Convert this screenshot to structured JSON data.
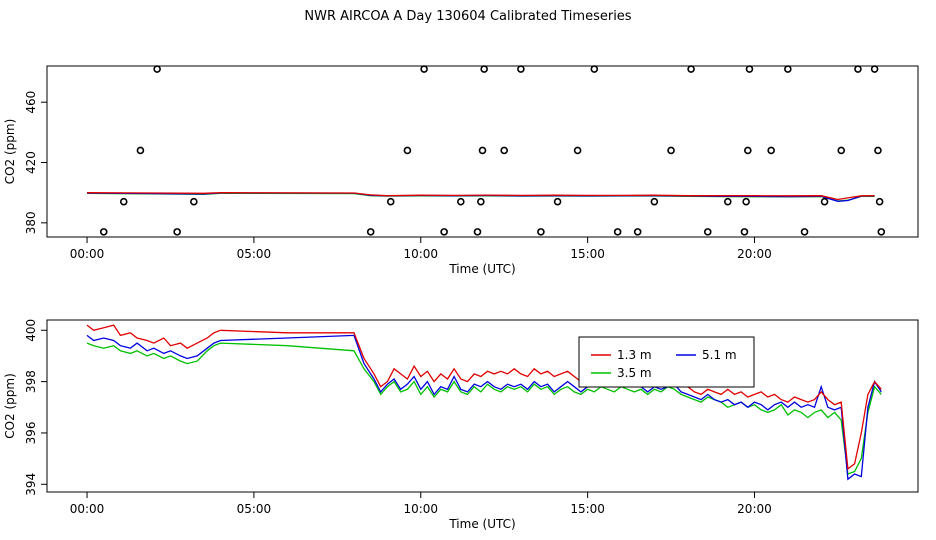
{
  "figure_title": "NWR AIRCOA A  Day 130604  Calibrated Timeseries",
  "colors": {
    "s13": "#e00000",
    "s35": "#00c000",
    "s51": "#0000e0",
    "axis": "#000000"
  },
  "chart_data": [
    {
      "type": "scatter",
      "title": "",
      "xlabel": "Time (UTC)",
      "ylabel": "CO2 (ppm)",
      "xlim": [
        -1.2,
        24.9
      ],
      "ylim": [
        370.6,
        484.0
      ],
      "xticks": [
        0,
        5,
        10,
        15,
        20
      ],
      "xtick_labels": [
        "00:00",
        "05:00",
        "10:00",
        "15:00",
        "20:00"
      ],
      "yticks": [
        380,
        420,
        460
      ],
      "ytick_labels": [
        "380",
        "420",
        "460"
      ],
      "points": [
        {
          "x": 0.5,
          "y": 374
        },
        {
          "x": 1.1,
          "y": 394
        },
        {
          "x": 1.6,
          "y": 428
        },
        {
          "x": 2.1,
          "y": 482
        },
        {
          "x": 2.7,
          "y": 374
        },
        {
          "x": 3.2,
          "y": 394
        },
        {
          "x": 8.5,
          "y": 374
        },
        {
          "x": 9.1,
          "y": 394
        },
        {
          "x": 9.6,
          "y": 428
        },
        {
          "x": 10.1,
          "y": 482
        },
        {
          "x": 10.7,
          "y": 374
        },
        {
          "x": 11.2,
          "y": 394
        },
        {
          "x": 11.7,
          "y": 374
        },
        {
          "x": 11.8,
          "y": 394
        },
        {
          "x": 11.85,
          "y": 428
        },
        {
          "x": 11.9,
          "y": 482
        },
        {
          "x": 12.5,
          "y": 428
        },
        {
          "x": 13.0,
          "y": 482
        },
        {
          "x": 13.6,
          "y": 374
        },
        {
          "x": 14.1,
          "y": 394
        },
        {
          "x": 14.7,
          "y": 428
        },
        {
          "x": 15.2,
          "y": 482
        },
        {
          "x": 15.9,
          "y": 374
        },
        {
          "x": 16.5,
          "y": 374
        },
        {
          "x": 17.0,
          "y": 394
        },
        {
          "x": 17.5,
          "y": 428
        },
        {
          "x": 18.1,
          "y": 482
        },
        {
          "x": 18.6,
          "y": 374
        },
        {
          "x": 19.2,
          "y": 394
        },
        {
          "x": 19.7,
          "y": 374
        },
        {
          "x": 19.75,
          "y": 394
        },
        {
          "x": 19.8,
          "y": 428
        },
        {
          "x": 19.85,
          "y": 482
        },
        {
          "x": 20.5,
          "y": 428
        },
        {
          "x": 21.0,
          "y": 482
        },
        {
          "x": 21.5,
          "y": 374
        },
        {
          "x": 22.1,
          "y": 394
        },
        {
          "x": 22.6,
          "y": 428
        },
        {
          "x": 23.1,
          "y": 482
        },
        {
          "x": 23.6,
          "y": 482
        },
        {
          "x": 23.7,
          "y": 428
        },
        {
          "x": 23.75,
          "y": 394
        },
        {
          "x": 23.8,
          "y": 374
        }
      ],
      "series": [
        {
          "name": "1.3 m",
          "color": "#e00000",
          "x": [
            0.0,
            2.0,
            3.5,
            4.0,
            8.0,
            8.5,
            9.0,
            10.0,
            11.0,
            12.0,
            13.0,
            14.0,
            15.0,
            16.0,
            17.0,
            18.0,
            19.0,
            20.0,
            21.0,
            22.0,
            22.5,
            22.8,
            23.2,
            23.6
          ],
          "values": [
            400.0,
            399.8,
            399.6,
            400.0,
            399.8,
            398.5,
            398.0,
            398.3,
            398.2,
            398.4,
            398.2,
            398.3,
            398.2,
            398.2,
            398.3,
            398.0,
            398.0,
            398.0,
            397.9,
            398.0,
            395.5,
            396.5,
            397.9,
            398.0
          ]
        },
        {
          "name": "3.5 m",
          "color": "#00c000",
          "x": [
            0.0,
            2.0,
            3.5,
            4.0,
            8.0,
            8.5,
            9.0,
            10.0,
            11.0,
            12.0,
            13.0,
            14.0,
            15.0,
            16.0,
            17.0,
            18.0,
            19.0,
            20.0,
            21.0,
            22.0,
            22.5,
            22.8,
            23.2,
            23.6
          ],
          "values": [
            399.5,
            399.2,
            398.9,
            399.6,
            399.4,
            398.0,
            397.7,
            397.9,
            397.8,
            397.9,
            397.7,
            397.8,
            397.7,
            397.8,
            397.8,
            397.6,
            397.4,
            397.3,
            397.2,
            397.4,
            394.5,
            395.0,
            397.5,
            397.6
          ]
        },
        {
          "name": "5.1 m",
          "color": "#0000e0",
          "x": [
            0.0,
            2.0,
            3.5,
            4.0,
            8.0,
            8.5,
            9.0,
            10.0,
            11.0,
            12.0,
            13.0,
            14.0,
            15.0,
            16.0,
            17.0,
            18.0,
            19.0,
            20.0,
            21.0,
            22.0,
            22.5,
            22.8,
            23.2,
            23.6
          ],
          "values": [
            399.7,
            399.4,
            399.1,
            399.8,
            399.7,
            398.2,
            397.9,
            398.1,
            398.0,
            398.1,
            397.9,
            398.0,
            397.9,
            398.0,
            398.0,
            397.8,
            397.6,
            397.5,
            397.4,
            397.6,
            394.3,
            394.8,
            397.7,
            397.8
          ]
        }
      ]
    },
    {
      "type": "line",
      "title": "",
      "xlabel": "Time (UTC)",
      "ylabel": "CO2 (ppm)",
      "xlim": [
        -1.2,
        24.9
      ],
      "ylim": [
        393.7,
        400.4
      ],
      "xticks": [
        0,
        5,
        10,
        15,
        20
      ],
      "xtick_labels": [
        "00:00",
        "05:00",
        "10:00",
        "15:00",
        "20:00"
      ],
      "yticks": [
        394,
        396,
        398,
        400
      ],
      "ytick_labels": [
        "394",
        "396",
        "398",
        "400"
      ],
      "legend": [
        "1.3 m",
        "3.5 m",
        "5.1 m"
      ],
      "legend_position": "center-right",
      "series": [
        {
          "name": "1.3 m",
          "color": "#e00000",
          "x": [
            0.0,
            0.2,
            0.5,
            0.8,
            1.0,
            1.3,
            1.5,
            1.8,
            2.0,
            2.3,
            2.5,
            2.8,
            3.0,
            3.3,
            3.6,
            3.8,
            4.0,
            6.0,
            8.0,
            8.3,
            8.6,
            8.8,
            9.0,
            9.2,
            9.4,
            9.6,
            9.8,
            10.0,
            10.2,
            10.4,
            10.6,
            10.8,
            11.0,
            11.2,
            11.4,
            11.6,
            11.8,
            12.0,
            12.2,
            12.4,
            12.6,
            12.8,
            13.0,
            13.2,
            13.4,
            13.6,
            13.8,
            14.0,
            14.2,
            14.4,
            14.6,
            14.8,
            15.0,
            15.2,
            15.4,
            15.6,
            15.8,
            16.0,
            16.2,
            16.4,
            16.6,
            16.8,
            17.0,
            17.2,
            17.4,
            17.6,
            17.8,
            18.0,
            18.2,
            18.4,
            18.6,
            18.8,
            19.0,
            19.2,
            19.4,
            19.6,
            19.8,
            20.0,
            20.2,
            20.4,
            20.6,
            20.8,
            21.0,
            21.2,
            21.4,
            21.6,
            21.8,
            22.0,
            22.2,
            22.4,
            22.6,
            22.8,
            23.0,
            23.2,
            23.4,
            23.6,
            23.8
          ],
          "values": [
            400.2,
            400.0,
            400.1,
            400.2,
            399.8,
            399.9,
            399.7,
            399.6,
            399.5,
            399.7,
            399.4,
            399.5,
            399.3,
            399.5,
            399.7,
            399.9,
            400.0,
            399.9,
            399.9,
            398.9,
            398.3,
            397.8,
            398.0,
            398.5,
            398.3,
            398.1,
            398.6,
            398.2,
            398.4,
            398.0,
            398.3,
            398.1,
            398.5,
            398.1,
            398.0,
            398.3,
            398.2,
            398.4,
            398.3,
            398.4,
            398.3,
            398.5,
            398.3,
            398.2,
            398.5,
            398.3,
            398.4,
            398.2,
            398.3,
            398.4,
            398.2,
            398.0,
            398.1,
            398.3,
            398.2,
            398.0,
            398.2,
            398.1,
            398.3,
            398.2,
            398.0,
            397.8,
            398.0,
            397.9,
            398.0,
            398.6,
            398.2,
            397.8,
            397.6,
            397.5,
            397.7,
            397.6,
            397.5,
            397.7,
            397.5,
            397.6,
            397.4,
            397.5,
            397.6,
            397.4,
            397.5,
            397.3,
            397.2,
            397.4,
            397.3,
            397.2,
            397.3,
            397.6,
            397.3,
            397.1,
            397.2,
            394.6,
            394.8,
            396.0,
            397.5,
            398.0,
            397.7
          ]
        },
        {
          "name": "3.5 m",
          "color": "#00c000",
          "x": [
            0.0,
            0.2,
            0.5,
            0.8,
            1.0,
            1.3,
            1.5,
            1.8,
            2.0,
            2.3,
            2.5,
            2.8,
            3.0,
            3.3,
            3.6,
            3.8,
            4.0,
            6.0,
            8.0,
            8.3,
            8.6,
            8.8,
            9.0,
            9.2,
            9.4,
            9.6,
            9.8,
            10.0,
            10.2,
            10.4,
            10.6,
            10.8,
            11.0,
            11.2,
            11.4,
            11.6,
            11.8,
            12.0,
            12.2,
            12.4,
            12.6,
            12.8,
            13.0,
            13.2,
            13.4,
            13.6,
            13.8,
            14.0,
            14.2,
            14.4,
            14.6,
            14.8,
            15.0,
            15.2,
            15.4,
            15.6,
            15.8,
            16.0,
            16.2,
            16.4,
            16.6,
            16.8,
            17.0,
            17.2,
            17.4,
            17.6,
            17.8,
            18.0,
            18.2,
            18.4,
            18.6,
            18.8,
            19.0,
            19.2,
            19.4,
            19.6,
            19.8,
            20.0,
            20.2,
            20.4,
            20.6,
            20.8,
            21.0,
            21.2,
            21.4,
            21.6,
            21.8,
            22.0,
            22.2,
            22.4,
            22.6,
            22.8,
            23.0,
            23.2,
            23.4,
            23.6,
            23.8
          ],
          "values": [
            399.5,
            399.4,
            399.3,
            399.4,
            399.2,
            399.1,
            399.2,
            399.0,
            399.1,
            398.9,
            399.0,
            398.8,
            398.7,
            398.8,
            399.2,
            399.4,
            399.5,
            399.4,
            399.2,
            398.5,
            398.0,
            397.5,
            397.8,
            398.0,
            397.6,
            397.7,
            398.0,
            397.5,
            397.8,
            397.4,
            397.7,
            397.6,
            398.0,
            397.6,
            397.5,
            397.8,
            397.6,
            397.9,
            397.7,
            397.6,
            397.8,
            397.7,
            397.8,
            397.6,
            397.9,
            397.7,
            397.8,
            397.5,
            397.7,
            397.8,
            397.6,
            397.5,
            397.7,
            397.6,
            397.8,
            397.7,
            397.6,
            397.8,
            397.7,
            397.6,
            397.7,
            397.5,
            397.7,
            397.6,
            397.8,
            397.7,
            397.5,
            397.4,
            397.3,
            397.2,
            397.4,
            397.3,
            397.2,
            397.0,
            397.1,
            397.2,
            397.0,
            397.1,
            396.9,
            396.8,
            396.9,
            397.1,
            396.7,
            396.9,
            396.8,
            396.6,
            396.8,
            396.9,
            396.6,
            396.8,
            396.5,
            394.4,
            394.5,
            395.0,
            396.8,
            397.8,
            397.5
          ]
        },
        {
          "name": "5.1 m",
          "color": "#0000e0",
          "x": [
            0.0,
            0.2,
            0.5,
            0.8,
            1.0,
            1.3,
            1.5,
            1.8,
            2.0,
            2.3,
            2.5,
            2.8,
            3.0,
            3.3,
            3.6,
            3.8,
            4.0,
            6.0,
            8.0,
            8.3,
            8.6,
            8.8,
            9.0,
            9.2,
            9.4,
            9.6,
            9.8,
            10.0,
            10.2,
            10.4,
            10.6,
            10.8,
            11.0,
            11.2,
            11.4,
            11.6,
            11.8,
            12.0,
            12.2,
            12.4,
            12.6,
            12.8,
            13.0,
            13.2,
            13.4,
            13.6,
            13.8,
            14.0,
            14.2,
            14.4,
            14.6,
            14.8,
            15.0,
            15.2,
            15.4,
            15.6,
            15.8,
            16.0,
            16.2,
            16.4,
            16.6,
            16.8,
            17.0,
            17.2,
            17.4,
            17.6,
            17.8,
            18.0,
            18.2,
            18.4,
            18.6,
            18.8,
            19.0,
            19.2,
            19.4,
            19.6,
            19.8,
            20.0,
            20.2,
            20.4,
            20.6,
            20.8,
            21.0,
            21.2,
            21.4,
            21.6,
            21.8,
            22.0,
            22.2,
            22.4,
            22.6,
            22.8,
            23.0,
            23.2,
            23.4,
            23.6,
            23.8
          ],
          "values": [
            399.8,
            399.6,
            399.7,
            399.6,
            399.4,
            399.3,
            399.5,
            399.2,
            399.3,
            399.1,
            399.2,
            399.0,
            398.9,
            399.0,
            399.3,
            399.5,
            399.6,
            399.7,
            399.8,
            398.7,
            398.1,
            397.6,
            397.9,
            398.1,
            397.7,
            397.9,
            398.2,
            397.7,
            398.0,
            397.5,
            397.8,
            397.7,
            398.2,
            397.7,
            397.6,
            397.9,
            397.8,
            398.0,
            397.8,
            397.7,
            397.9,
            397.8,
            397.9,
            397.7,
            398.0,
            397.8,
            397.9,
            397.6,
            397.8,
            398.0,
            397.8,
            397.6,
            397.8,
            398.0,
            398.1,
            398.0,
            397.8,
            398.2,
            398.0,
            397.9,
            397.8,
            397.6,
            397.8,
            397.7,
            397.8,
            397.9,
            397.6,
            397.5,
            397.4,
            397.3,
            397.5,
            397.3,
            397.2,
            397.3,
            397.1,
            397.2,
            397.0,
            397.2,
            397.1,
            396.9,
            397.1,
            397.2,
            397.0,
            397.2,
            397.0,
            397.1,
            397.0,
            397.8,
            397.0,
            396.9,
            397.0,
            394.2,
            394.4,
            394.3,
            397.0,
            398.0,
            397.6
          ]
        }
      ]
    }
  ]
}
